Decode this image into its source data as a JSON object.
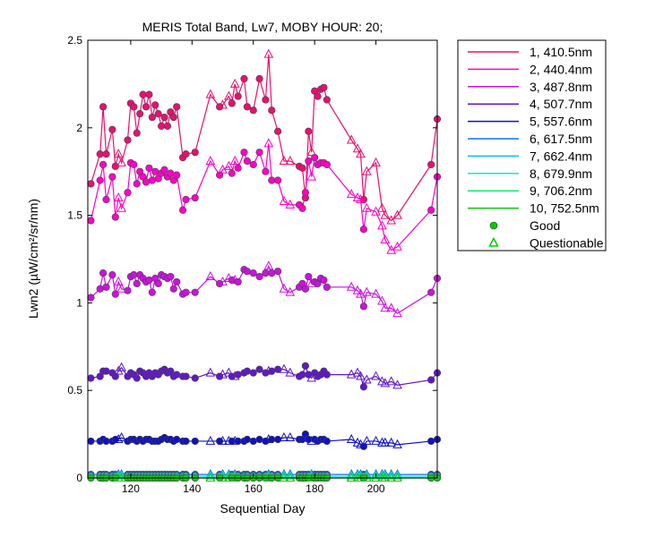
{
  "chart_data": {
    "type": "line",
    "title": "MERIS Total Band, Lw7, MOBY HOUR: 20;",
    "xlabel": "Sequential Day",
    "ylabel": "Lwn2 (µW/cm²/sr/nm)",
    "xlim": [
      106,
      220
    ],
    "ylim": [
      0,
      2.5
    ],
    "xticks": [
      120,
      140,
      160,
      180,
      200
    ],
    "yticks": [
      0,
      0.5,
      1,
      1.5,
      2,
      2.5
    ],
    "ytick_labels": [
      "0",
      "0.5",
      "1",
      "1.5",
      "2",
      "2.5"
    ],
    "grid": false,
    "legend_position": "outside-right",
    "marker_legend": [
      {
        "label": "Good",
        "marker": "circle",
        "color": "#00cc00"
      },
      {
        "label": "Questionable",
        "marker": "triangle",
        "color": "#00cc00"
      }
    ],
    "x": [
      107,
      110,
      111,
      112,
      114,
      115,
      116,
      117,
      119,
      120,
      121,
      122,
      123,
      124,
      125,
      126,
      127,
      128,
      129,
      130,
      131,
      132,
      133,
      134,
      135,
      137,
      138,
      141,
      146,
      149,
      150,
      152,
      153,
      154,
      155,
      157,
      158,
      160,
      162,
      164,
      165,
      166,
      168,
      170,
      172,
      175,
      176,
      177,
      178,
      179,
      180,
      181,
      182,
      183,
      184,
      192,
      194,
      195,
      196,
      197,
      200,
      202,
      203,
      205,
      207,
      218,
      220
    ],
    "marker_codes": [
      "G",
      "G",
      "G",
      "G",
      "G",
      "G",
      "Q",
      "Q",
      "G",
      "G",
      "G",
      "G",
      "G",
      "G",
      "G",
      "G",
      "G",
      "G",
      "G",
      "G",
      "G",
      "G",
      "G",
      "G",
      "G",
      "G",
      "G",
      "G",
      "Q",
      "G",
      "Q",
      "Q",
      "G",
      "Q",
      "G",
      "G",
      "G",
      "G",
      "G",
      "G",
      "Q",
      "G",
      "G",
      "Q",
      "Q",
      "G",
      "G",
      "G",
      "G",
      "Q",
      "G",
      "G",
      "G",
      "G",
      "G",
      "Q",
      "Q",
      "Q",
      "G",
      "Q",
      "Q",
      "Q",
      "Q",
      "Q",
      "Q",
      "G",
      "G"
    ],
    "series": [
      {
        "name": "1, 410.5nm",
        "color": "#e8106e",
        "values": [
          1.68,
          1.85,
          2.12,
          1.85,
          1.99,
          1.78,
          1.85,
          1.8,
          1.93,
          2.14,
          2.12,
          1.97,
          2.08,
          2.19,
          2.12,
          2.19,
          2.06,
          2.13,
          2.08,
          2.01,
          2.06,
          2.01,
          2.09,
          2.06,
          2.12,
          1.83,
          1.85,
          1.86,
          2.19,
          2.12,
          2.13,
          2.18,
          2.14,
          2.25,
          2.18,
          2.28,
          2.12,
          2.1,
          2.28,
          2.16,
          2.42,
          2.1,
          1.98,
          1.81,
          1.81,
          1.78,
          1.77,
          1.6,
          1.98,
          1.86,
          2.21,
          2.18,
          2.22,
          2.23,
          2.16,
          1.93,
          1.88,
          1.85,
          1.59,
          1.75,
          1.8,
          1.54,
          1.5,
          1.47,
          1.5,
          1.79,
          2.05
        ]
      },
      {
        "name": "2, 440.4nm",
        "color": "#ff00c8",
        "values": [
          1.47,
          1.7,
          1.79,
          1.59,
          1.72,
          1.49,
          1.6,
          1.54,
          1.63,
          1.8,
          1.79,
          1.68,
          1.75,
          1.72,
          1.69,
          1.77,
          1.7,
          1.75,
          1.71,
          1.74,
          1.76,
          1.72,
          1.74,
          1.7,
          1.73,
          1.53,
          1.59,
          1.6,
          1.81,
          1.73,
          1.76,
          1.78,
          1.74,
          1.81,
          1.77,
          1.86,
          1.81,
          1.79,
          1.86,
          1.75,
          1.91,
          1.7,
          1.7,
          1.58,
          1.56,
          1.56,
          1.54,
          1.63,
          1.81,
          1.72,
          1.83,
          1.79,
          1.8,
          1.8,
          1.79,
          1.62,
          1.6,
          1.59,
          1.42,
          1.54,
          1.52,
          1.44,
          1.36,
          1.3,
          1.32,
          1.53,
          1.72
        ]
      },
      {
        "name": "3, 487.8nm",
        "color": "#cc10e0",
        "values": [
          1.03,
          1.08,
          1.17,
          1.09,
          1.16,
          1.05,
          1.12,
          1.08,
          1.07,
          1.15,
          1.16,
          1.11,
          1.16,
          1.14,
          1.12,
          1.13,
          1.06,
          1.14,
          1.11,
          1.16,
          1.15,
          1.14,
          1.15,
          1.08,
          1.12,
          1.05,
          1.06,
          1.06,
          1.15,
          1.11,
          1.12,
          1.14,
          1.13,
          1.13,
          1.12,
          1.19,
          1.18,
          1.17,
          1.15,
          1.17,
          1.21,
          1.17,
          1.18,
          1.08,
          1.06,
          1.09,
          1.11,
          1.08,
          1.15,
          1.11,
          1.12,
          1.11,
          1.14,
          1.13,
          1.09,
          1.09,
          1.07,
          1.05,
          0.98,
          1.06,
          1.05,
          1.01,
          0.97,
          0.97,
          0.94,
          1.06,
          1.14
        ]
      },
      {
        "name": "4, 507.7nm",
        "color": "#6018c8",
        "values": [
          0.57,
          0.58,
          0.61,
          0.61,
          0.6,
          0.58,
          0.61,
          0.63,
          0.58,
          0.6,
          0.59,
          0.57,
          0.61,
          0.6,
          0.58,
          0.6,
          0.58,
          0.6,
          0.59,
          0.61,
          0.62,
          0.6,
          0.61,
          0.58,
          0.59,
          0.58,
          0.58,
          0.57,
          0.6,
          0.58,
          0.59,
          0.6,
          0.58,
          0.58,
          0.59,
          0.6,
          0.61,
          0.6,
          0.62,
          0.6,
          0.61,
          0.61,
          0.62,
          0.62,
          0.6,
          0.58,
          0.59,
          0.64,
          0.59,
          0.57,
          0.6,
          0.58,
          0.59,
          0.61,
          0.59,
          0.59,
          0.6,
          0.58,
          0.52,
          0.56,
          0.58,
          0.55,
          0.54,
          0.55,
          0.53,
          0.56,
          0.6
        ]
      },
      {
        "name": "5, 557.6nm",
        "color": "#1010c8",
        "values": [
          0.21,
          0.21,
          0.22,
          0.21,
          0.21,
          0.22,
          0.22,
          0.23,
          0.21,
          0.22,
          0.22,
          0.21,
          0.22,
          0.21,
          0.22,
          0.22,
          0.21,
          0.21,
          0.21,
          0.22,
          0.23,
          0.22,
          0.22,
          0.21,
          0.22,
          0.21,
          0.21,
          0.21,
          0.21,
          0.21,
          0.21,
          0.21,
          0.21,
          0.21,
          0.21,
          0.21,
          0.22,
          0.21,
          0.22,
          0.21,
          0.22,
          0.22,
          0.22,
          0.23,
          0.23,
          0.22,
          0.22,
          0.25,
          0.22,
          0.21,
          0.22,
          0.21,
          0.22,
          0.22,
          0.21,
          0.22,
          0.2,
          0.19,
          0.18,
          0.21,
          0.21,
          0.2,
          0.2,
          0.2,
          0.19,
          0.21,
          0.22
        ]
      },
      {
        "name": "6, 617.5nm",
        "color": "#1070f0",
        "values": [
          0.02,
          0.02,
          0.02,
          0.02,
          0.02,
          0.02,
          0.02,
          0.02,
          0.02,
          0.02,
          0.02,
          0.02,
          0.02,
          0.02,
          0.02,
          0.02,
          0.02,
          0.02,
          0.02,
          0.02,
          0.02,
          0.02,
          0.02,
          0.02,
          0.02,
          0.02,
          0.02,
          0.02,
          0.02,
          0.02,
          0.02,
          0.02,
          0.02,
          0.02,
          0.02,
          0.02,
          0.02,
          0.02,
          0.02,
          0.02,
          0.02,
          0.02,
          0.02,
          0.02,
          0.02,
          0.02,
          0.02,
          0.02,
          0.02,
          0.02,
          0.02,
          0.02,
          0.02,
          0.02,
          0.02,
          0.02,
          0.02,
          0.02,
          0.02,
          0.02,
          0.02,
          0.02,
          0.02,
          0.02,
          0.02,
          0.02,
          0.02
        ]
      },
      {
        "name": "7, 662.4nm",
        "color": "#10b8f0",
        "values": [
          0.01,
          0.01,
          0.01,
          0.01,
          0.01,
          0.01,
          0.01,
          0.01,
          0.01,
          0.01,
          0.01,
          0.01,
          0.01,
          0.01,
          0.01,
          0.01,
          0.01,
          0.01,
          0.01,
          0.01,
          0.01,
          0.01,
          0.01,
          0.01,
          0.01,
          0.01,
          0.01,
          0.01,
          0.01,
          0.01,
          0.01,
          0.01,
          0.01,
          0.01,
          0.01,
          0.01,
          0.01,
          0.01,
          0.01,
          0.01,
          0.01,
          0.01,
          0.01,
          0.01,
          0.01,
          0.01,
          0.01,
          0.01,
          0.01,
          0.01,
          0.01,
          0.01,
          0.01,
          0.01,
          0.01,
          0.01,
          0.01,
          0.01,
          0.01,
          0.01,
          0.01,
          0.01,
          0.01,
          0.01,
          0.01,
          0.01,
          0.01
        ]
      },
      {
        "name": "8, 679.9nm",
        "color": "#10e8c0",
        "values": [
          0.01,
          0.01,
          0.01,
          0.01,
          0.01,
          0.01,
          0.01,
          0.01,
          0.01,
          0.01,
          0.01,
          0.01,
          0.01,
          0.01,
          0.01,
          0.01,
          0.01,
          0.01,
          0.01,
          0.01,
          0.01,
          0.01,
          0.01,
          0.01,
          0.01,
          0.01,
          0.01,
          0.01,
          0.01,
          0.01,
          0.01,
          0.01,
          0.01,
          0.01,
          0.01,
          0.01,
          0.01,
          0.01,
          0.01,
          0.01,
          0.01,
          0.01,
          0.01,
          0.01,
          0.01,
          0.01,
          0.01,
          0.01,
          0.01,
          0.01,
          0.01,
          0.01,
          0.01,
          0.01,
          0.01,
          0.01,
          0.01,
          0.01,
          0.01,
          0.01,
          0.01,
          0.01,
          0.01,
          0.01,
          0.01,
          0.01,
          0.01
        ]
      },
      {
        "name": "9, 706.2nm",
        "color": "#10e870",
        "values": [
          0.0,
          0.0,
          0.0,
          0.0,
          0.0,
          0.0,
          0.0,
          0.0,
          0.0,
          0.0,
          0.0,
          0.0,
          0.0,
          0.0,
          0.0,
          0.0,
          0.0,
          0.0,
          0.0,
          0.0,
          0.0,
          0.0,
          0.0,
          0.0,
          0.0,
          0.0,
          0.0,
          0.0,
          0.0,
          0.0,
          0.0,
          0.0,
          0.0,
          0.0,
          0.0,
          0.0,
          0.0,
          0.0,
          0.0,
          0.0,
          0.0,
          0.0,
          0.0,
          0.0,
          0.0,
          0.0,
          0.0,
          0.0,
          0.0,
          0.0,
          0.0,
          0.0,
          0.0,
          0.0,
          0.0,
          0.0,
          0.0,
          0.0,
          0.0,
          0.0,
          0.0,
          0.0,
          0.0,
          0.0,
          0.0,
          0.0,
          0.0
        ]
      },
      {
        "name": "10, 752.5nm",
        "color": "#10c810",
        "values": [
          0.0,
          0.0,
          0.0,
          0.0,
          0.0,
          0.0,
          0.0,
          0.0,
          0.0,
          0.0,
          0.0,
          0.0,
          0.0,
          0.0,
          0.0,
          0.0,
          0.0,
          0.0,
          0.0,
          0.0,
          0.0,
          0.0,
          0.0,
          0.0,
          0.0,
          0.0,
          0.0,
          0.0,
          0.0,
          0.0,
          0.0,
          0.0,
          0.0,
          0.0,
          0.0,
          0.0,
          0.0,
          0.0,
          0.0,
          0.0,
          0.0,
          0.0,
          0.0,
          0.0,
          0.0,
          0.0,
          0.0,
          0.0,
          0.0,
          0.0,
          0.0,
          0.0,
          0.0,
          0.0,
          0.0,
          0.0,
          0.0,
          0.0,
          0.0,
          0.0,
          0.0,
          0.0,
          0.0,
          0.0,
          0.0,
          0.0,
          0.0
        ]
      }
    ]
  }
}
